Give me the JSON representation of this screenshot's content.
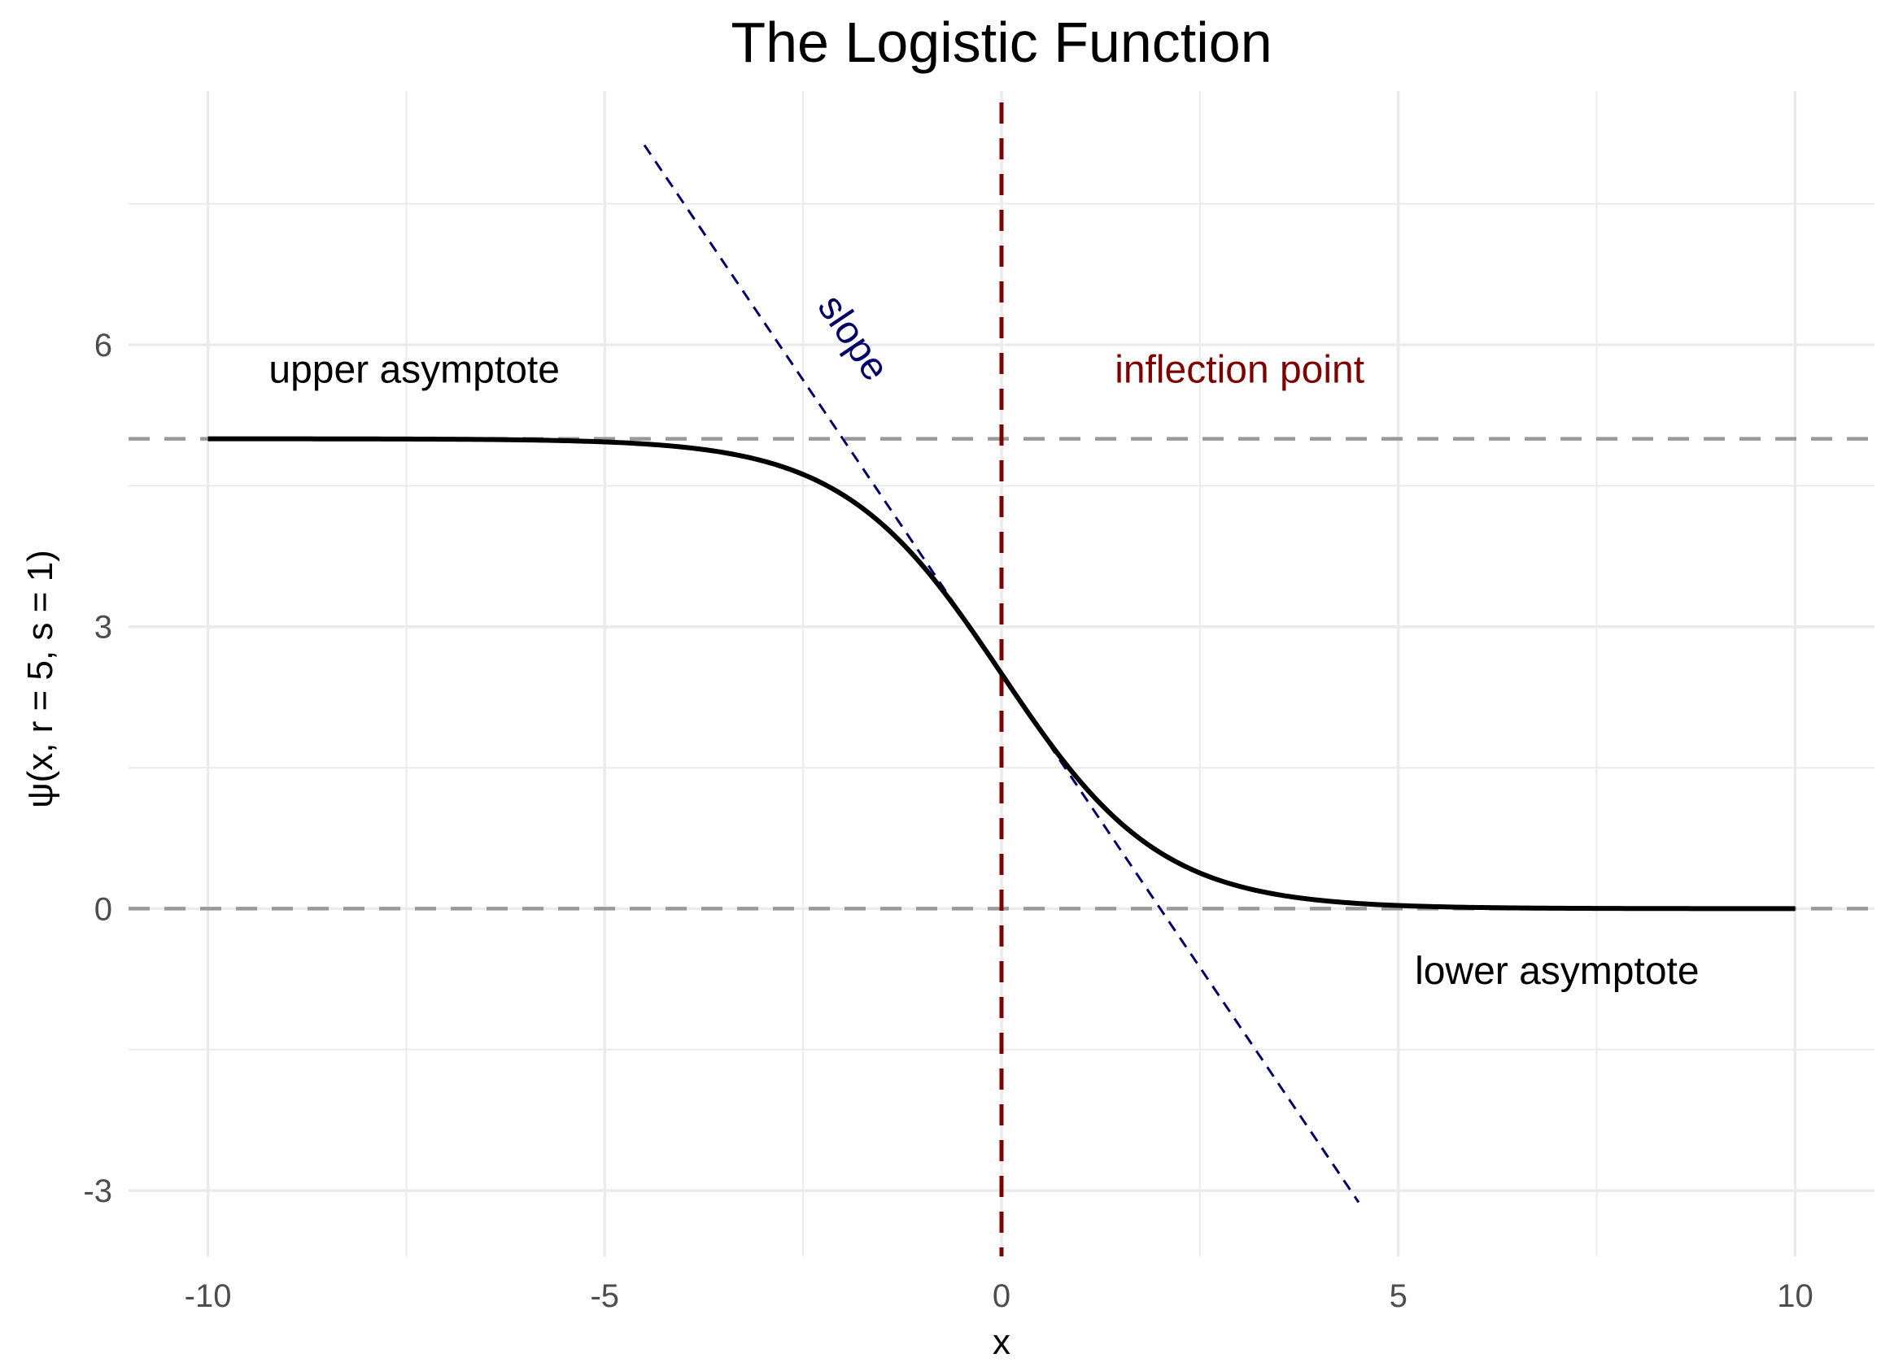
{
  "chart_data": {
    "type": "line",
    "title": "The Logistic Function",
    "xlabel": "x",
    "ylabel": "ψ(x, r = 5, s = 1)",
    "xlim": [
      -11,
      11
    ],
    "ylim": [
      -3.7,
      8.7
    ],
    "x_ticks": [
      -10,
      -5,
      0,
      5,
      10
    ],
    "x_tick_labels": [
      "-10",
      "-5",
      "0",
      "5",
      "10"
    ],
    "y_ticks": [
      -3,
      0,
      3,
      6
    ],
    "y_tick_labels": [
      "-3",
      "0",
      "3",
      "6"
    ],
    "x_minor": [
      -7.5,
      -2.5,
      2.5,
      7.5
    ],
    "y_minor": [
      -1.5,
      1.5,
      4.5,
      7.5
    ],
    "grid": true,
    "legend": "none",
    "series": [
      {
        "kind": "logistic-curve",
        "r": 5,
        "s": 1,
        "x_range": [
          -10,
          10
        ],
        "color": "#000000"
      }
    ],
    "reference_lines": [
      {
        "name": "upper asymptote",
        "orientation": "horizontal",
        "value": 5,
        "color": "#999999"
      },
      {
        "name": "lower asymptote",
        "orientation": "horizontal",
        "value": 0,
        "color": "#999999"
      },
      {
        "name": "inflection point",
        "orientation": "vertical",
        "value": 0,
        "color": "#7f0000"
      }
    ],
    "slope_line": {
      "x_range": [
        -4.5,
        4.5
      ],
      "intercept": 2.5,
      "slope": -1.25,
      "color": "#000066"
    },
    "annotations": [
      {
        "text": "upper asymptote",
        "x": -7.4,
        "y": 5.6,
        "color": "#000000"
      },
      {
        "text": "slope",
        "x": -2.0,
        "y": 6.0,
        "color": "#000066"
      },
      {
        "text": "inflection point",
        "x": 3.0,
        "y": 5.6,
        "color": "#7f0000"
      },
      {
        "text": "lower asymptote",
        "x": 7.0,
        "y": -0.8,
        "color": "#000000"
      }
    ],
    "colors": {
      "grid": "#ebebeb",
      "curve": "#000000",
      "asymptote": "#999999",
      "inflection": "#7f0000",
      "slope": "#000066"
    }
  }
}
